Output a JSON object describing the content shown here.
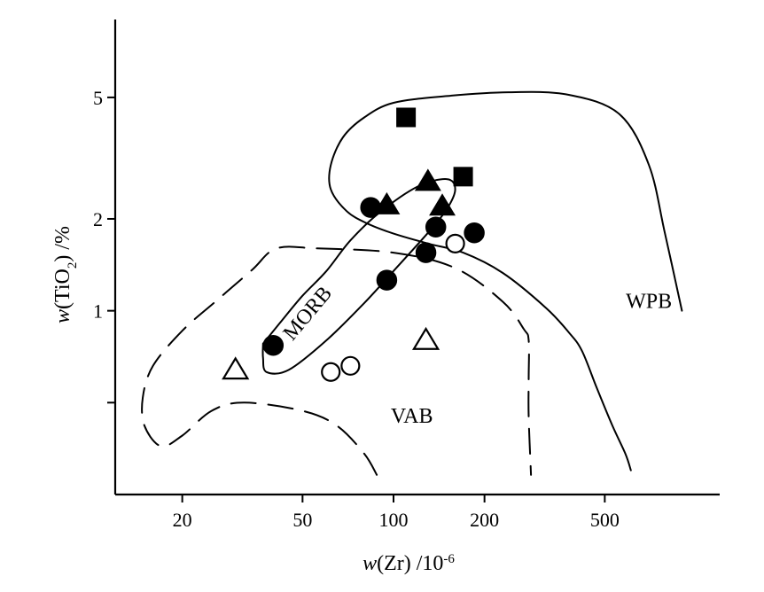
{
  "chart_data": {
    "type": "scatter",
    "title": "",
    "xlabel_parts": [
      "w",
      "(Zr) /10",
      "-6"
    ],
    "ylabel_parts": [
      "w",
      "(TiO",
      "2",
      ") /%"
    ],
    "xscale": "log",
    "yscale": "log",
    "xlim": [
      12,
      1200
    ],
    "ylim": [
      0.25,
      9.0
    ],
    "xticks": [
      {
        "value": 20,
        "label": "20"
      },
      {
        "value": 50,
        "label": "50"
      },
      {
        "value": 100,
        "label": "100"
      },
      {
        "value": 200,
        "label": "200"
      },
      {
        "value": 500,
        "label": "500"
      }
    ],
    "yticks": [
      {
        "value": 0.5,
        "label": ""
      },
      {
        "value": 1,
        "label": "1"
      },
      {
        "value": 2,
        "label": "2"
      },
      {
        "value": 5,
        "label": "5"
      }
    ],
    "region_labels": [
      {
        "text": "MORB",
        "x": 54,
        "y": 0.95,
        "rotate": -50
      },
      {
        "text": "WPB",
        "x": 700,
        "y": 1.02,
        "rotate": 0
      },
      {
        "text": "VAB",
        "x": 115,
        "y": 0.43,
        "rotate": 0
      }
    ],
    "boundaries": [
      {
        "name": "WPB",
        "style": "solid",
        "points": [
          [
            610,
            0.3
          ],
          [
            585,
            0.34
          ],
          [
            530,
            0.42
          ],
          [
            470,
            0.56
          ],
          [
            420,
            0.74
          ],
          [
            380,
            0.85
          ],
          [
            320,
            1.02
          ],
          [
            230,
            1.33
          ],
          [
            170,
            1.55
          ],
          [
            130,
            1.66
          ],
          [
            100,
            1.79
          ],
          [
            82,
            1.93
          ],
          [
            70,
            2.12
          ],
          [
            62,
            2.5
          ],
          [
            62,
            3.0
          ],
          [
            68,
            3.7
          ],
          [
            80,
            4.3
          ],
          [
            100,
            4.8
          ],
          [
            150,
            5.05
          ],
          [
            240,
            5.2
          ],
          [
            380,
            5.1
          ],
          [
            560,
            4.4
          ],
          [
            700,
            3.0
          ],
          [
            790,
            1.8
          ],
          [
            900,
            1.0
          ]
        ]
      },
      {
        "name": "MORB",
        "style": "solid",
        "points": [
          [
            37,
            0.78
          ],
          [
            42,
            0.91
          ],
          [
            50,
            1.12
          ],
          [
            60,
            1.35
          ],
          [
            72,
            1.7
          ],
          [
            90,
            2.1
          ],
          [
            120,
            2.55
          ],
          [
            150,
            2.7
          ],
          [
            160,
            2.5
          ],
          [
            150,
            2.15
          ],
          [
            130,
            1.8
          ],
          [
            100,
            1.35
          ],
          [
            80,
            1.06
          ],
          [
            60,
            0.8
          ],
          [
            45,
            0.64
          ],
          [
            38,
            0.63
          ],
          [
            37,
            0.7
          ],
          [
            37,
            0.78
          ]
        ]
      },
      {
        "name": "VAB",
        "style": "dashed",
        "points": [
          [
            88,
            0.29
          ],
          [
            80,
            0.34
          ],
          [
            65,
            0.42
          ],
          [
            50,
            0.47
          ],
          [
            32,
            0.5
          ],
          [
            25,
            0.47
          ],
          [
            20,
            0.39
          ],
          [
            17,
            0.36
          ],
          [
            15,
            0.42
          ],
          [
            14.8,
            0.52
          ],
          [
            16,
            0.66
          ],
          [
            20,
            0.86
          ],
          [
            26,
            1.08
          ],
          [
            34,
            1.36
          ],
          [
            41,
            1.6
          ],
          [
            56,
            1.6
          ],
          [
            100,
            1.55
          ],
          [
            160,
            1.38
          ],
          [
            230,
            1.07
          ],
          [
            270,
            0.87
          ],
          [
            280,
            0.8
          ],
          [
            280,
            0.6
          ],
          [
            280,
            0.45
          ],
          [
            285,
            0.29
          ]
        ]
      }
    ],
    "series": [
      {
        "marker": "square-filled",
        "points": [
          [
            110,
            4.3
          ],
          [
            170,
            2.75
          ]
        ]
      },
      {
        "marker": "triangle-filled",
        "points": [
          [
            95,
            2.22
          ],
          [
            130,
            2.65
          ],
          [
            145,
            2.2
          ]
        ]
      },
      {
        "marker": "circle-filled",
        "points": [
          [
            40,
            0.77
          ],
          [
            84,
            2.18
          ],
          [
            95,
            1.26
          ],
          [
            128,
            1.55
          ],
          [
            138,
            1.88
          ],
          [
            185,
            1.8
          ]
        ]
      },
      {
        "marker": "circle-open",
        "points": [
          [
            62,
            0.63
          ],
          [
            72,
            0.66
          ],
          [
            160,
            1.66
          ]
        ]
      },
      {
        "marker": "triangle-open",
        "points": [
          [
            30,
            0.64
          ],
          [
            128,
            0.8
          ]
        ]
      }
    ]
  }
}
